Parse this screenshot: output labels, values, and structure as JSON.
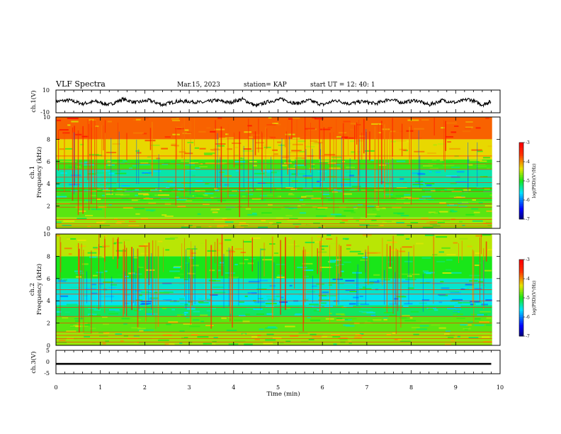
{
  "header": {
    "title": "VLF Spectra",
    "date": "Mar.15, 2023",
    "station": "station= KAP",
    "start_ut": "start  UT  =   12: 40: 1"
  },
  "chart_data": [
    {
      "type": "line",
      "panel": "ch1-waveform",
      "ylabel": "ch.1(V)",
      "ylim": [
        -10,
        10
      ],
      "yticks": [
        "10",
        "-10"
      ],
      "xlim": [
        0,
        10
      ],
      "series": [
        {
          "color": "#000000",
          "x": [
            0,
            0.3,
            0.6,
            0.9,
            1.2,
            1.5,
            1.8,
            2.1,
            2.4,
            2.7,
            3.0,
            3.3,
            3.6,
            3.9,
            4.2,
            4.5,
            4.8,
            5.1,
            5.4,
            5.7,
            6.0,
            6.3,
            6.6,
            6.9,
            7.2,
            7.5,
            7.8,
            8.1,
            8.4,
            8.7,
            9.0,
            9.3,
            9.6,
            9.8
          ],
          "y": [
            0,
            1,
            -2,
            0,
            -3,
            2,
            -1,
            1,
            -3,
            0,
            0,
            -1,
            1,
            -1,
            2,
            -4,
            0,
            2,
            -2,
            1,
            -3,
            1,
            -2,
            0,
            -2,
            2,
            -1,
            1,
            -3,
            1,
            -1,
            2,
            -3,
            0
          ]
        }
      ]
    },
    {
      "type": "heatmap",
      "panel": "ch1-spectrogram",
      "ylabel": "ch.1\nFrequency (kHz)",
      "ylim": [
        0,
        10
      ],
      "yticks": [
        "0",
        "2",
        "4",
        "6",
        "8",
        "10"
      ],
      "xlim": [
        0,
        10
      ],
      "colorbar": {
        "label": "log(PSD)(V²/Hz)",
        "range": [
          -7,
          -3
        ],
        "ticks": [
          "-3",
          "-4",
          "-5",
          "-6",
          "-7"
        ]
      },
      "bands": [
        {
          "f_min": 0,
          "f_max": 1,
          "level": -4.6
        },
        {
          "f_min": 1,
          "f_max": 2.4,
          "level": -4.8
        },
        {
          "f_min": 2.4,
          "f_max": 3.2,
          "level": -4.9
        },
        {
          "f_min": 3.2,
          "f_max": 3.7,
          "level": -5.0
        },
        {
          "f_min": 3.7,
          "f_max": 5.3,
          "level": -5.4
        },
        {
          "f_min": 5.3,
          "f_max": 6.2,
          "level": -4.9
        },
        {
          "f_min": 6.2,
          "f_max": 8.0,
          "level": -4.3
        },
        {
          "f_min": 8.0,
          "f_max": 10,
          "level": -3.8
        }
      ],
      "lines_khz": [
        0.2,
        0.4,
        0.8,
        1.9,
        2.2,
        2.7,
        3.3,
        3.6,
        4.1,
        4.6,
        5.3,
        5.8,
        6.5
      ]
    },
    {
      "type": "heatmap",
      "panel": "ch2-spectrogram",
      "ylabel": "ch.2\nFrequency (kHz)",
      "ylim": [
        0,
        10
      ],
      "yticks": [
        "0",
        "2",
        "4",
        "6",
        "8",
        "10"
      ],
      "xlim": [
        0,
        10
      ],
      "colorbar": {
        "label": "log(PSD)(V²/Hz)",
        "range": [
          -7,
          -3
        ],
        "ticks": [
          "-3",
          "-4",
          "-5",
          "-6",
          "-7"
        ]
      },
      "bands": [
        {
          "f_min": 0,
          "f_max": 1.2,
          "level": -4.6
        },
        {
          "f_min": 1.2,
          "f_max": 2.6,
          "level": -4.8
        },
        {
          "f_min": 2.6,
          "f_max": 3.6,
          "level": -5.2
        },
        {
          "f_min": 3.6,
          "f_max": 4.6,
          "level": -5.6
        },
        {
          "f_min": 4.6,
          "f_max": 6.0,
          "level": -5.5
        },
        {
          "f_min": 6.0,
          "f_max": 8.0,
          "level": -5.0
        },
        {
          "f_min": 8.0,
          "f_max": 10,
          "level": -4.5
        }
      ],
      "lines_khz": [
        0.3,
        0.6,
        0.9,
        1.2,
        2.0,
        2.6,
        3.4,
        4.0,
        4.6,
        5.0,
        5.6
      ]
    },
    {
      "type": "line",
      "panel": "ch3-waveform",
      "ylabel": "ch.3(V)",
      "ylim": [
        -5,
        5
      ],
      "yticks": [
        "5",
        "0",
        "-5"
      ],
      "xlim": [
        0,
        10
      ],
      "xlabel": "Time (min)",
      "xticks": [
        "0",
        "1",
        "2",
        "3",
        "4",
        "5",
        "6",
        "7",
        "8",
        "9",
        "10"
      ],
      "series": [
        {
          "color": "#000000",
          "x": [
            0,
            9.8
          ],
          "y_min": [
            -1.2,
            -1.2
          ],
          "y_max": [
            -0.4,
            -0.4
          ]
        }
      ]
    }
  ]
}
